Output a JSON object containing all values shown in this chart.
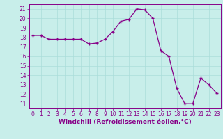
{
  "hours": [
    0,
    1,
    2,
    3,
    4,
    5,
    6,
    7,
    8,
    9,
    10,
    11,
    12,
    13,
    14,
    15,
    16,
    17,
    18,
    19,
    20,
    21,
    22,
    23
  ],
  "values": [
    18.2,
    18.2,
    17.8,
    17.8,
    17.8,
    17.8,
    17.8,
    17.3,
    17.4,
    17.8,
    18.6,
    19.7,
    19.9,
    21.0,
    20.9,
    20.0,
    16.6,
    16.0,
    12.6,
    11.0,
    11.0,
    13.7,
    13.0,
    12.1
  ],
  "line_color": "#880088",
  "marker": "+",
  "marker_size": 3.5,
  "bg_color": "#c8eeea",
  "grid_color": "#aaddda",
  "xlabel": "Windchill (Refroidissement éolien,°C)",
  "xlabel_color": "#880088",
  "ylim": [
    10.5,
    21.5
  ],
  "xlim": [
    -0.5,
    23.5
  ],
  "yticks": [
    11,
    12,
    13,
    14,
    15,
    16,
    17,
    18,
    19,
    20,
    21
  ],
  "xtick_labels": [
    "0",
    "1",
    "2",
    "3",
    "4",
    "5",
    "6",
    "7",
    "8",
    "9",
    "10",
    "11",
    "12",
    "13",
    "14",
    "15",
    "16",
    "17",
    "18",
    "19",
    "20",
    "21",
    "22",
    "23"
  ],
  "tick_color": "#880088",
  "tick_fontsize": 5.5,
  "xlabel_fontsize": 6.5,
  "marker_edge_width": 1.0,
  "line_width": 0.9
}
